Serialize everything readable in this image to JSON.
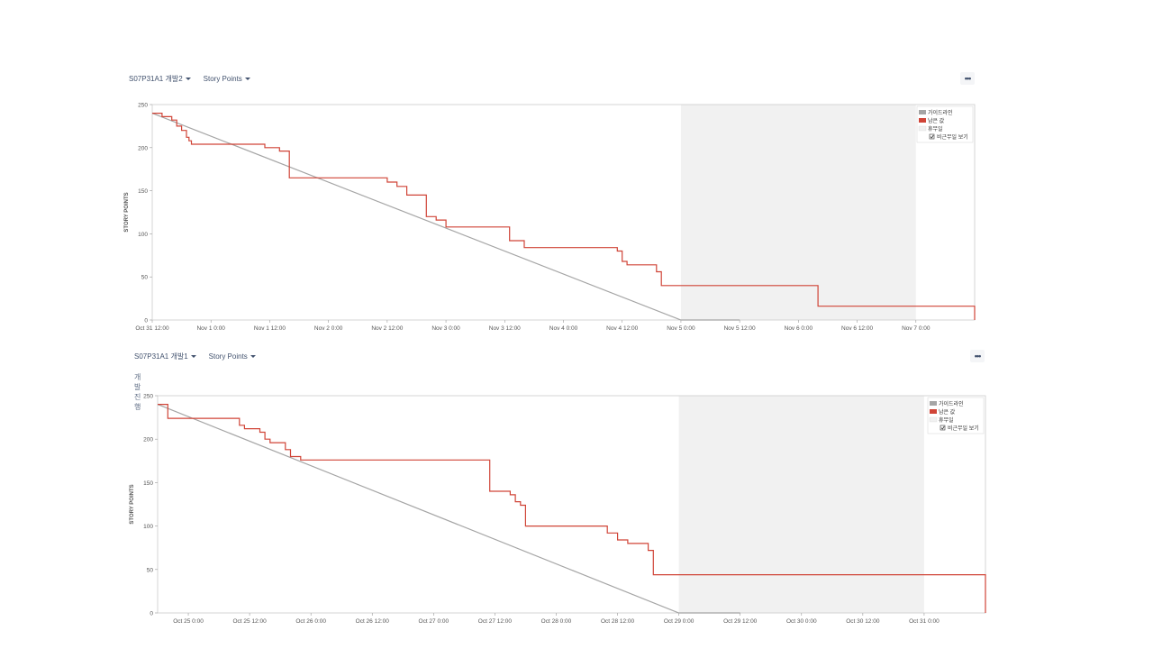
{
  "panels": [
    {
      "board_dropdown": "S07P31A1 개발2",
      "estimate_dropdown": "Story Points",
      "more_label": "•••",
      "subtitle": ""
    },
    {
      "board_dropdown": "S07P31A1 개발1",
      "estimate_dropdown": "Story Points",
      "more_label": "•••",
      "subtitle": "개발 진행"
    }
  ],
  "colors": {
    "guideline": "#a5a5a5",
    "remaining": "#d04437",
    "non_working": "#f1f1f1",
    "axis": "#cccccc"
  },
  "chart_data": [
    {
      "type": "line",
      "ylabel": "STORY POINTS",
      "ylim": [
        0,
        250
      ],
      "yticks": [
        0,
        50,
        100,
        150,
        200,
        250
      ],
      "x_unit": "hours",
      "x_range": [
        "Oct 31 12:00",
        "Nov 7 12:00"
      ],
      "xtick_labels": [
        "Oct 31 12:00",
        "Nov 1 0:00",
        "Nov 1 12:00",
        "Nov 2 0:00",
        "Nov 2 12:00",
        "Nov 3 0:00",
        "Nov 3 12:00",
        "Nov 4 0:00",
        "Nov 4 12:00",
        "Nov 5 0:00",
        "Nov 5 12:00",
        "Nov 6 0:00",
        "Nov 6 12:00",
        "Nov 7 0:00"
      ],
      "non_working": [
        "Nov 5 0:00",
        "Nov 7 0:00"
      ],
      "legend": {
        "position": "top-right",
        "guideline": "가이드라인",
        "remaining": "남은 값",
        "non_working": "휴무일",
        "show_non_working": "비근무일 보기",
        "show_non_working_checked": true
      },
      "series": [
        {
          "name": "가이드라인",
          "x": [
            "Oct 31 12:00",
            "Nov 5 0:00",
            "Nov 5 12:00"
          ],
          "y": [
            240,
            0,
            0
          ]
        },
        {
          "name": "남은 값",
          "step": true,
          "x": [
            "Oct 31 12:00",
            "Oct 31 14:00",
            "Oct 31 16:00",
            "Oct 31 17:00",
            "Oct 31 18:00",
            "Oct 31 19:00",
            "Oct 31 19:30",
            "Oct 31 20:00",
            "Nov 1 11:00",
            "Nov 1 14:00",
            "Nov 1 16:00",
            "Nov 2 0:00",
            "Nov 2 12:00",
            "Nov 2 14:00",
            "Nov 2 16:00",
            "Nov 2 20:00",
            "Nov 2 22:00",
            "Nov 3 0:00",
            "Nov 3 13:00",
            "Nov 3 16:00",
            "Nov 4 11:00",
            "Nov 4 12:00",
            "Nov 4 13:00",
            "Nov 4 15:00",
            "Nov 4 19:00",
            "Nov 4 20:00",
            "Nov 6 4:00",
            "Nov 7 11:00",
            "Nov 7 12:00"
          ],
          "y": [
            240,
            236,
            232,
            225,
            220,
            212,
            208,
            204,
            200,
            196,
            165,
            165,
            160,
            155,
            145,
            120,
            116,
            108,
            92,
            84,
            80,
            68,
            64,
            64,
            56,
            40,
            16,
            16,
            0
          ]
        }
      ]
    },
    {
      "type": "line",
      "ylabel": "STORY POINTS",
      "ylim": [
        0,
        250
      ],
      "yticks": [
        0,
        50,
        100,
        150,
        200,
        250
      ],
      "x_unit": "hours",
      "x_range": [
        "Oct 24 18:00",
        "Oct 31 12:00"
      ],
      "xtick_labels": [
        "Oct 25 0:00",
        "Oct 25 12:00",
        "Oct 26 0:00",
        "Oct 26 12:00",
        "Oct 27 0:00",
        "Oct 27 12:00",
        "Oct 28 0:00",
        "Oct 28 12:00",
        "Oct 29 0:00",
        "Oct 29 12:00",
        "Oct 30 0:00",
        "Oct 30 12:00",
        "Oct 31 0:00"
      ],
      "non_working": [
        "Oct 29 0:00",
        "Oct 31 0:00"
      ],
      "legend": {
        "position": "top-right",
        "guideline": "가이드라인",
        "remaining": "남은 값",
        "non_working": "휴무일",
        "show_non_working": "비근무일 보기",
        "show_non_working_checked": true
      },
      "series": [
        {
          "name": "가이드라인",
          "x": [
            "Oct 24 18:00",
            "Oct 29 0:00",
            "Oct 29 12:00"
          ],
          "y": [
            240,
            0,
            0
          ]
        },
        {
          "name": "남은 값",
          "step": true,
          "x": [
            "Oct 24 18:00",
            "Oct 24 20:00",
            "Oct 25 10:00",
            "Oct 25 11:00",
            "Oct 25 14:00",
            "Oct 25 15:00",
            "Oct 25 16:00",
            "Oct 25 19:00",
            "Oct 25 20:00",
            "Oct 25 22:00",
            "Oct 27 11:00",
            "Oct 27 15:00",
            "Oct 27 16:00",
            "Oct 27 17:00",
            "Oct 27 18:00",
            "Oct 28 10:00",
            "Oct 28 12:00",
            "Oct 28 14:00",
            "Oct 28 18:00",
            "Oct 28 19:00",
            "Oct 31 12:00"
          ],
          "y": [
            240,
            224,
            216,
            212,
            208,
            200,
            196,
            188,
            180,
            176,
            140,
            136,
            128,
            124,
            100,
            92,
            84,
            80,
            72,
            44,
            0
          ]
        }
      ]
    }
  ]
}
